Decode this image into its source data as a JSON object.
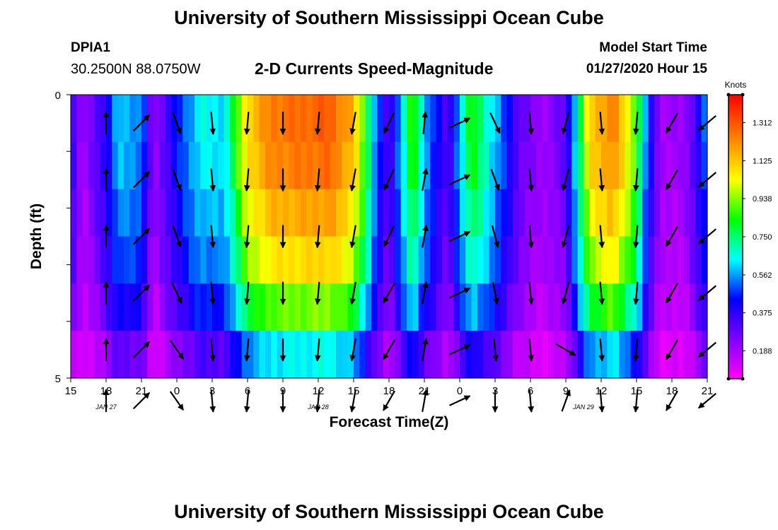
{
  "header": {
    "main_title": "University of Southern Mississippi Ocean Cube",
    "station_id": "DPIA1",
    "station_coords": "30.2500N 88.0750W",
    "chart_title": "2-D Currents Speed-Magnitude",
    "model_label": "Model Start Time",
    "model_time": "01/27/2020 Hour 15"
  },
  "footer": {
    "title": "University of Southern Mississippi Ocean Cube"
  },
  "chart_data": {
    "type": "heatmap",
    "title": "2-D Currents Speed-Magnitude",
    "xlabel": "Forecast Time(Z)",
    "ylabel": "Depth (ft)",
    "ylim": [
      0,
      5
    ],
    "y_ticks": [
      "0",
      "5"
    ],
    "x_tick_labels": [
      "15",
      "18",
      "21",
      "0",
      "3",
      "6",
      "9",
      "12",
      "15",
      "18",
      "21",
      "0",
      "3",
      "6",
      "9",
      "12",
      "15",
      "18",
      "21"
    ],
    "date_labels": [
      {
        "label": "JAN  27",
        "tick_index": 1
      },
      {
        "label": "JAN  28",
        "tick_index": 7
      },
      {
        "label": "JAN  29",
        "tick_index": 14.5
      }
    ],
    "colorbar": {
      "label": "Knots",
      "ticks": [
        "1.312",
        "1.125",
        "0.938",
        "0.750",
        "0.562",
        "0.375",
        "0.188"
      ],
      "tick_values": [
        1.312,
        1.125,
        0.938,
        0.75,
        0.562,
        0.375,
        0.188
      ],
      "range": [
        0.05,
        1.45
      ]
    },
    "speed_profile_hours": [
      {
        "hour": 0,
        "speed": 0.4
      },
      {
        "hour": 1,
        "speed": 0.18
      },
      {
        "hour": 3,
        "speed": 0.4
      },
      {
        "hour": 4,
        "speed": 0.6
      },
      {
        "hour": 6,
        "speed": 0.55
      },
      {
        "hour": 7,
        "speed": 0.2
      },
      {
        "hour": 9,
        "speed": 0.45
      },
      {
        "hour": 11,
        "speed": 0.65
      },
      {
        "hour": 13,
        "speed": 0.62
      },
      {
        "hour": 14,
        "speed": 0.85
      },
      {
        "hour": 15,
        "speed": 1.1
      },
      {
        "hour": 17,
        "speed": 1.25
      },
      {
        "hour": 22,
        "speed": 1.3
      },
      {
        "hour": 24,
        "speed": 1.15
      },
      {
        "hour": 25,
        "speed": 0.85
      },
      {
        "hour": 26,
        "speed": 0.5
      },
      {
        "hour": 27,
        "speed": 0.3
      },
      {
        "hour": 28,
        "speed": 0.6
      },
      {
        "hour": 29,
        "speed": 0.9
      },
      {
        "hour": 30,
        "speed": 0.6
      },
      {
        "hour": 32,
        "speed": 0.3
      },
      {
        "hour": 33,
        "speed": 0.6
      },
      {
        "hour": 34,
        "speed": 0.85
      },
      {
        "hour": 36,
        "speed": 0.6
      },
      {
        "hour": 38,
        "speed": 0.3
      },
      {
        "hour": 40,
        "speed": 0.2
      },
      {
        "hour": 42,
        "speed": 0.3
      },
      {
        "hour": 43,
        "speed": 0.7
      },
      {
        "hour": 44,
        "speed": 1.1
      },
      {
        "hour": 46,
        "speed": 1.25
      },
      {
        "hour": 48,
        "speed": 0.9
      },
      {
        "hour": 49,
        "speed": 0.45
      },
      {
        "hour": 50,
        "speed": 0.2
      },
      {
        "hour": 52,
        "speed": 0.2
      },
      {
        "hour": 53,
        "speed": 0.35
      },
      {
        "hour": 54,
        "speed": 0.55
      }
    ],
    "depth_factors": [
      1.0,
      0.98,
      0.92,
      0.85,
      0.72,
      0.5
    ],
    "vector_columns": [
      {
        "hour": 3,
        "dirs": [
          0,
          0,
          0,
          0,
          0,
          0
        ]
      },
      {
        "hour": 6,
        "dirs": [
          45,
          45,
          45,
          45,
          45,
          45
        ]
      },
      {
        "hour": 9,
        "dirs": [
          160,
          160,
          160,
          155,
          145,
          145
        ]
      },
      {
        "hour": 12,
        "dirs": [
          175,
          175,
          175,
          175,
          175,
          175
        ]
      },
      {
        "hour": 15,
        "dirs": [
          185,
          185,
          185,
          185,
          185,
          185
        ]
      },
      {
        "hour": 18,
        "dirs": [
          180,
          180,
          180,
          180,
          180,
          180
        ]
      },
      {
        "hour": 21,
        "dirs": [
          185,
          185,
          185,
          185,
          185,
          185
        ]
      },
      {
        "hour": 24,
        "dirs": [
          190,
          190,
          190,
          190,
          190,
          190
        ]
      },
      {
        "hour": 27,
        "dirs": [
          205,
          205,
          205,
          210,
          210,
          210
        ]
      },
      {
        "hour": 30,
        "dirs": [
          5,
          10,
          10,
          10,
          10,
          10
        ]
      },
      {
        "hour": 33,
        "dirs": [
          65,
          65,
          65,
          65,
          65,
          65
        ]
      },
      {
        "hour": 36,
        "dirs": [
          155,
          160,
          165,
          170,
          175,
          180
        ]
      },
      {
        "hour": 39,
        "dirs": [
          175,
          175,
          175,
          175,
          175,
          175
        ]
      },
      {
        "hour": 42,
        "dirs": [
          195,
          195,
          195,
          195,
          120,
          20
        ]
      },
      {
        "hour": 45,
        "dirs": [
          175,
          175,
          175,
          175,
          175,
          175
        ]
      },
      {
        "hour": 48,
        "dirs": [
          185,
          185,
          185,
          185,
          185,
          185
        ]
      },
      {
        "hour": 51,
        "dirs": [
          210,
          210,
          210,
          210,
          210,
          210
        ]
      },
      {
        "hour": 54,
        "dirs": [
          230,
          230,
          230,
          230,
          230,
          230
        ]
      }
    ],
    "vector_row_depths": [
      0.5,
      1.5,
      2.5,
      3.5,
      4.5,
      5.4
    ],
    "vector_length_knots": 0.9
  }
}
